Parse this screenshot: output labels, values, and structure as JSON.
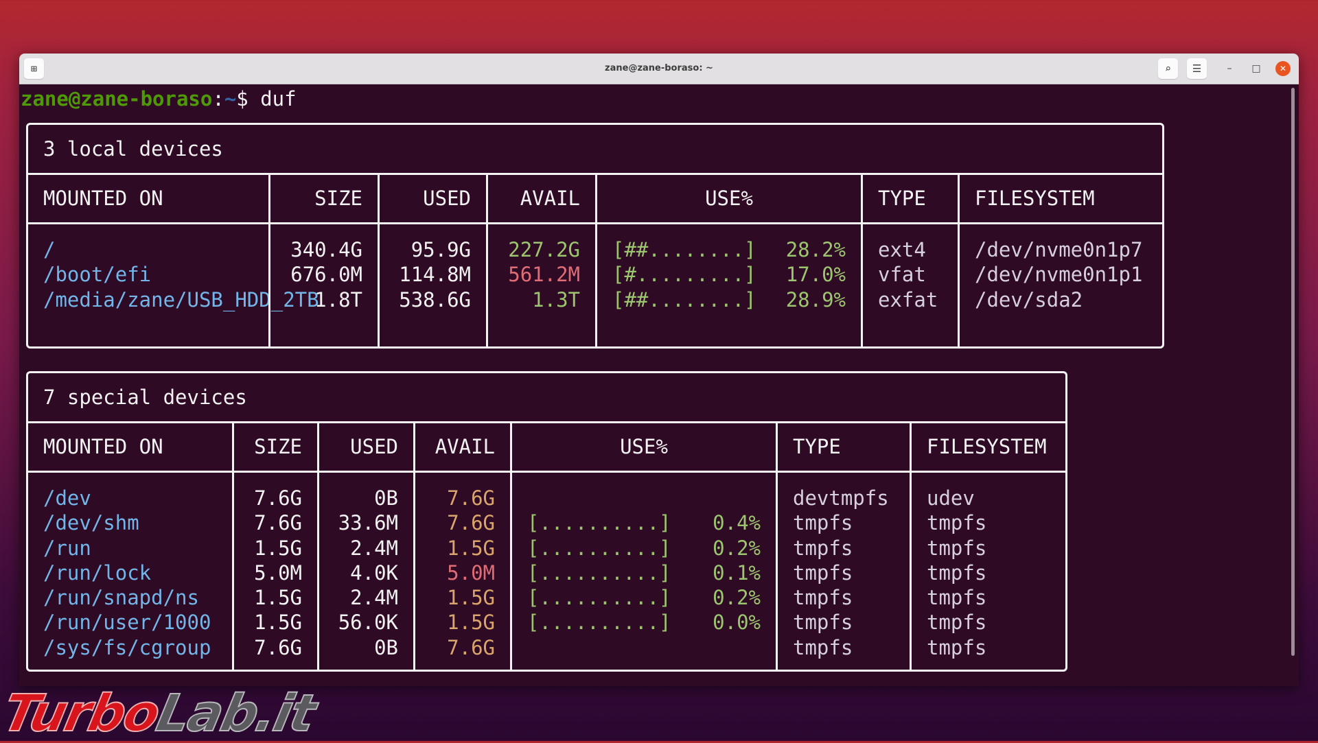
{
  "window": {
    "title": "zane@zane-boraso: ~"
  },
  "prompt": {
    "user_host": "zane@zane-boraso",
    "sep": ":",
    "path": "~",
    "symbol": "$ ",
    "command": "duf"
  },
  "colors": {
    "blue": "#73b5e8",
    "green": "#9cc56f",
    "red": "#e06c75",
    "orange": "#d9a56c",
    "white": "#f2f2f2",
    "background": "#2f0a24",
    "close": "#e95420"
  },
  "icons": {
    "new_tab": "new-tab-icon",
    "search": "search-icon",
    "menu": "hamburger-menu-icon",
    "minimize": "minimize-icon",
    "maximize": "maximize-icon",
    "close": "close-icon"
  },
  "sections": [
    {
      "title": "3 local devices",
      "headers": [
        "MOUNTED ON",
        "SIZE",
        "USED",
        "AVAIL",
        "USE%",
        "TYPE",
        "FILESYSTEM"
      ],
      "rows": [
        {
          "mount": "/",
          "size": "340.4G",
          "used": "95.9G",
          "avail": "227.2G",
          "avail_color": "green",
          "bar": "[##........]",
          "pct": "28.2%",
          "type": "ext4",
          "fs": "/dev/nvme0n1p7"
        },
        {
          "mount": "/boot/efi",
          "size": "676.0M",
          "used": "114.8M",
          "avail": "561.2M",
          "avail_color": "red",
          "bar": "[#.........]",
          "pct": "17.0%",
          "type": "vfat",
          "fs": "/dev/nvme0n1p1"
        },
        {
          "mount": "/media/zane/USB_HDD_2TB",
          "size": "1.8T",
          "used": "538.6G",
          "avail": "1.3T",
          "avail_color": "green",
          "bar": "[##........]",
          "pct": "28.9%",
          "type": "exfat",
          "fs": "/dev/sda2"
        }
      ]
    },
    {
      "title": "7 special devices",
      "headers": [
        "MOUNTED ON",
        "SIZE",
        "USED",
        "AVAIL",
        "USE%",
        "TYPE",
        "FILESYSTEM"
      ],
      "rows": [
        {
          "mount": "/dev",
          "size": "7.6G",
          "used": "0B",
          "avail": "7.6G",
          "avail_color": "orange",
          "bar": "",
          "pct": "",
          "type": "devtmpfs",
          "fs": "udev"
        },
        {
          "mount": "/dev/shm",
          "size": "7.6G",
          "used": "33.6M",
          "avail": "7.6G",
          "avail_color": "orange",
          "bar": "[..........]",
          "pct": "0.4%",
          "type": "tmpfs",
          "fs": "tmpfs"
        },
        {
          "mount": "/run",
          "size": "1.5G",
          "used": "2.4M",
          "avail": "1.5G",
          "avail_color": "orange",
          "bar": "[..........]",
          "pct": "0.2%",
          "type": "tmpfs",
          "fs": "tmpfs"
        },
        {
          "mount": "/run/lock",
          "size": "5.0M",
          "used": "4.0K",
          "avail": "5.0M",
          "avail_color": "red",
          "bar": "[..........]",
          "pct": "0.1%",
          "type": "tmpfs",
          "fs": "tmpfs"
        },
        {
          "mount": "/run/snapd/ns",
          "size": "1.5G",
          "used": "2.4M",
          "avail": "1.5G",
          "avail_color": "orange",
          "bar": "[..........]",
          "pct": "0.2%",
          "type": "tmpfs",
          "fs": "tmpfs"
        },
        {
          "mount": "/run/user/1000",
          "size": "1.5G",
          "used": "56.0K",
          "avail": "1.5G",
          "avail_color": "orange",
          "bar": "[..........]",
          "pct": "0.0%",
          "type": "tmpfs",
          "fs": "tmpfs"
        },
        {
          "mount": "/sys/fs/cgroup",
          "size": "7.6G",
          "used": "0B",
          "avail": "7.6G",
          "avail_color": "orange",
          "bar": "",
          "pct": "",
          "type": "tmpfs",
          "fs": "tmpfs"
        }
      ]
    }
  ],
  "watermark": {
    "part1": "Turbo",
    "part2": "Lab.it"
  }
}
